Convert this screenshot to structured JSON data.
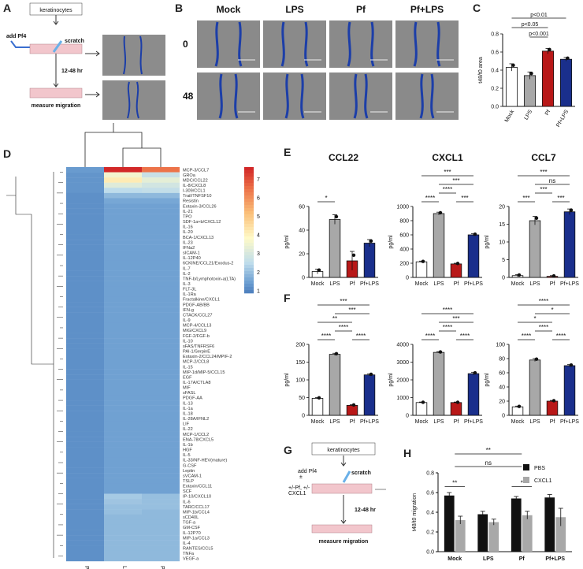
{
  "panels": {
    "A": {
      "letter": "A",
      "keratinocytes": "keratinocytes",
      "add": "add Pf4",
      "scratch": "scratch",
      "time": "12-48 hr",
      "measure": "measure migration"
    },
    "B": {
      "letter": "B",
      "columns": [
        "Mock",
        "LPS",
        "Pf",
        "Pf+LPS"
      ],
      "rows": [
        "0",
        "48"
      ]
    },
    "C": {
      "letter": "C"
    },
    "D": {
      "letter": "D"
    },
    "E": {
      "letter": "E"
    },
    "F": {
      "letter": "F"
    },
    "G": {
      "letter": "G",
      "keratinocytes": "keratinocytes",
      "add": "add Pf4",
      "add_sub": "±",
      "treat": "+/-Pf, +/-",
      "treat2": "CXCL1",
      "scratch": "scratch",
      "time": "12-48 hr",
      "measure": "measure migration"
    },
    "H": {
      "letter": "H"
    }
  },
  "chart_data": [
    {
      "id": "C",
      "type": "bar",
      "categories": [
        "Mock",
        "LPS",
        "Pf",
        "Pf+LPS"
      ],
      "values": [
        0.43,
        0.34,
        0.61,
        0.52
      ],
      "errors": [
        0.04,
        0.04,
        0.03,
        0.02
      ],
      "colors": [
        "#ffffff",
        "#a8a8a8",
        "#b81818",
        "#1a2f8c"
      ],
      "ylabel": "t48/t0 area",
      "ylim": [
        0,
        0.8
      ],
      "yticks": [
        "0.0",
        "0.2",
        "0.4",
        "0.6",
        "0.8"
      ],
      "significance": [
        "p<0.01",
        "p<0.05",
        "p<0.001"
      ]
    },
    {
      "id": "D",
      "type": "heatmap",
      "columns": [
        "Pf",
        "LPS",
        "Pf/LPS"
      ],
      "rows": [
        "MCP-3/CCL7",
        "GROa",
        "MDC/CCL22",
        "IL-8/CXCL8",
        "I-309/CCL1",
        "Trail/TNFSF10",
        "Resistin",
        "Eotaxin-3/CCL26",
        "IL-21",
        "TPO",
        "SDF-1a+b/CXCL12",
        "IL-16",
        "IL-20",
        "BCA-1/CXCL13",
        "IL-23",
        "IFNa2",
        "sICAM-1",
        "IL-12P40",
        "6CKINE/CCL21/Exodus-2",
        "IL-7",
        "IL-2",
        "TNF-b/Lymphotoxin-a(LTA)",
        "IL-3",
        "FLT-3L",
        "IL-1Ra",
        "Fractalkine/CXCL1",
        "PDGF-AB/BB",
        "IFN-g",
        "CTACK/CCL27",
        "IL-9",
        "MCP-4/CCL13",
        "MIG/CXCL9",
        "FGF-2/FGF-b",
        "IL-10",
        "sFAS/TNFRSF6",
        "PAI-1/SerpinE",
        "Eotaxin-2/CCL24/MPIF-2",
        "MCP-2/CCL8",
        "IL-15",
        "MIP-1d/MIP-5/CCL15",
        "EGF",
        "IL-17A/CTLA8",
        "MIF",
        "sFASL",
        "PDGF-AA",
        "IL-13",
        "IL-1a",
        "IL-18",
        "IL-28A/IFNL2",
        "LIF",
        "IL-22",
        "MCP-1/CCL2",
        "ENA-78/CXCL5",
        "IL-1b",
        "HGF",
        "IL-5",
        "IL-33/NF-HEV(mature)",
        "G-CSF",
        "Leptin",
        "sVCAM-1",
        "TSLP",
        "Eotaxin/CCL11",
        "SCF",
        "IP-10/CXCL10",
        "IL-6",
        "TARC/CCL17",
        "MIP-1b/CCL4",
        "sCD40L",
        "TGF-a",
        "GM-CSF",
        "IL-12P70",
        "MIP-1a/CCL3",
        "IL-4",
        "RANTES/CCL5",
        "TNFa",
        "VEGF-a"
      ],
      "values": [
        [
          1.4,
          7.6,
          6.5
        ],
        [
          1.3,
          3.6,
          2.7
        ],
        [
          1.3,
          4.2,
          3.3
        ],
        [
          1.3,
          3.2,
          2.9
        ],
        [
          1.3,
          2.5,
          2.6
        ],
        [
          1.2,
          1.9,
          1.9
        ],
        [
          1.2,
          1.6,
          1.6
        ],
        [
          1.2,
          1.5,
          1.5
        ],
        [
          1.2,
          1.5,
          1.5
        ],
        [
          1.2,
          1.5,
          1.5
        ],
        [
          1.2,
          1.5,
          1.5
        ],
        [
          1.2,
          1.5,
          1.5
        ],
        [
          1.2,
          1.5,
          1.5
        ],
        [
          1.2,
          1.5,
          1.5
        ],
        [
          1.2,
          1.5,
          1.5
        ],
        [
          1.2,
          1.5,
          1.5
        ],
        [
          1.2,
          1.5,
          1.5
        ],
        [
          1.2,
          1.5,
          1.5
        ],
        [
          1.2,
          1.5,
          1.5
        ],
        [
          1.2,
          1.5,
          1.5
        ],
        [
          1.2,
          1.5,
          1.5
        ],
        [
          1.2,
          1.5,
          1.5
        ],
        [
          1.2,
          1.5,
          1.5
        ],
        [
          1.2,
          1.5,
          1.5
        ],
        [
          1.2,
          1.5,
          1.5
        ],
        [
          1.2,
          1.5,
          1.5
        ],
        [
          1.2,
          1.5,
          1.5
        ],
        [
          1.2,
          1.5,
          1.5
        ],
        [
          1.2,
          1.5,
          1.5
        ],
        [
          1.2,
          1.5,
          1.5
        ],
        [
          1.2,
          1.5,
          1.5
        ],
        [
          1.2,
          1.5,
          1.5
        ],
        [
          1.2,
          1.5,
          1.5
        ],
        [
          1.2,
          1.5,
          1.5
        ],
        [
          1.2,
          1.5,
          1.5
        ],
        [
          1.2,
          1.5,
          1.5
        ],
        [
          1.2,
          1.5,
          1.5
        ],
        [
          1.2,
          1.5,
          1.5
        ],
        [
          1.2,
          1.5,
          1.5
        ],
        [
          1.2,
          1.5,
          1.5
        ],
        [
          1.2,
          1.5,
          1.5
        ],
        [
          1.2,
          1.5,
          1.5
        ],
        [
          1.2,
          1.5,
          1.5
        ],
        [
          1.2,
          1.5,
          1.5
        ],
        [
          1.2,
          1.5,
          1.5
        ],
        [
          1.2,
          1.5,
          1.5
        ],
        [
          1.2,
          1.5,
          1.5
        ],
        [
          1.2,
          1.5,
          1.5
        ],
        [
          1.2,
          1.5,
          1.5
        ],
        [
          1.2,
          1.5,
          1.5
        ],
        [
          1.2,
          1.5,
          1.5
        ],
        [
          1.2,
          1.5,
          1.5
        ],
        [
          1.2,
          1.5,
          1.5
        ],
        [
          1.2,
          1.5,
          1.5
        ],
        [
          1.2,
          1.5,
          1.5
        ],
        [
          1.2,
          1.5,
          1.5
        ],
        [
          1.2,
          1.5,
          1.5
        ],
        [
          1.2,
          1.5,
          1.5
        ],
        [
          1.2,
          1.5,
          1.5
        ],
        [
          1.2,
          1.5,
          1.5
        ],
        [
          1.2,
          1.5,
          1.5
        ],
        [
          1.2,
          1.5,
          1.5
        ],
        [
          1.2,
          1.5,
          1.5
        ],
        [
          1.2,
          2.2,
          2.0
        ],
        [
          1.2,
          2.1,
          2.0
        ],
        [
          1.2,
          2.0,
          2.0
        ],
        [
          1.2,
          2.0,
          1.9
        ],
        [
          1.2,
          1.9,
          1.9
        ],
        [
          1.2,
          1.9,
          1.9
        ],
        [
          1.2,
          1.9,
          1.9
        ],
        [
          1.2,
          1.9,
          1.9
        ],
        [
          1.2,
          1.9,
          1.9
        ],
        [
          1.2,
          1.9,
          1.9
        ],
        [
          1.2,
          1.9,
          1.9
        ],
        [
          1.2,
          1.9,
          1.9
        ],
        [
          1.2,
          1.9,
          1.9
        ]
      ],
      "scale_ticks": [
        "7",
        "6",
        "5",
        "4",
        "3",
        "2",
        "1"
      ],
      "scale_range": [
        0.8,
        7.6
      ]
    },
    {
      "id": "E1",
      "type": "bar",
      "title": "CCL22",
      "ylabel": "pg/ml",
      "categories": [
        "Mock",
        "LPS",
        "Pf",
        "Pf+LPS"
      ],
      "values": [
        5,
        49,
        14,
        29
      ],
      "errors": [
        2,
        4,
        8,
        3
      ],
      "ylim": [
        0,
        60
      ],
      "yticks": [
        "0",
        "20",
        "40",
        "60"
      ],
      "colors": [
        "#ffffff",
        "#a8a8a8",
        "#b81818",
        "#1a2f8c"
      ],
      "sig": [
        {
          "a": 0,
          "b": 1,
          "label": "*",
          "lvl": 0
        }
      ]
    },
    {
      "id": "E2",
      "type": "bar",
      "title": "CXCL1",
      "ylabel": "pg/ml",
      "categories": [
        "Mock",
        "LPS",
        "Pf",
        "Pf+LPS"
      ],
      "values": [
        220,
        900,
        190,
        600
      ],
      "errors": [
        10,
        20,
        10,
        15
      ],
      "ylim": [
        0,
        1000
      ],
      "yticks": [
        "0",
        "200",
        "400",
        "600",
        "800",
        "1000"
      ],
      "colors": [
        "#ffffff",
        "#a8a8a8",
        "#b81818",
        "#1a2f8c"
      ],
      "sig": [
        {
          "a": 0,
          "b": 1,
          "label": "****",
          "lvl": 0
        },
        {
          "a": 2,
          "b": 3,
          "label": "***",
          "lvl": 0
        },
        {
          "a": 1,
          "b": 2,
          "label": "****",
          "lvl": 1
        },
        {
          "a": 1,
          "b": 3,
          "label": "***",
          "lvl": 2
        },
        {
          "a": 0,
          "b": 3,
          "label": "***",
          "lvl": 3
        }
      ]
    },
    {
      "id": "E3",
      "type": "bar",
      "title": "CCL7",
      "ylabel": "pg/ml",
      "categories": [
        "Mock",
        "LPS",
        "Pf",
        "Pf+LPS"
      ],
      "values": [
        0.5,
        16,
        0.3,
        18.5
      ],
      "errors": [
        0.3,
        1.2,
        0.2,
        0.8
      ],
      "ylim": [
        0,
        20
      ],
      "yticks": [
        "0",
        "5",
        "10",
        "15",
        "20"
      ],
      "colors": [
        "#ffffff",
        "#a8a8a8",
        "#b81818",
        "#1a2f8c"
      ],
      "sig": [
        {
          "a": 0,
          "b": 1,
          "label": "***",
          "lvl": 0
        },
        {
          "a": 2,
          "b": 3,
          "label": "***",
          "lvl": 0
        },
        {
          "a": 1,
          "b": 2,
          "label": "***",
          "lvl": 1
        },
        {
          "a": 1,
          "b": 3,
          "label": "ns",
          "lvl": 2
        },
        {
          "a": 0,
          "b": 3,
          "label": "***",
          "lvl": 3
        }
      ]
    },
    {
      "id": "F1",
      "type": "bar",
      "ylabel": "pg/ml",
      "categories": [
        "Mock",
        "LPS",
        "Pf",
        "Pf+LPS"
      ],
      "values": [
        48,
        172,
        28,
        114
      ],
      "errors": [
        2,
        3,
        2,
        3
      ],
      "ylim": [
        0,
        200
      ],
      "yticks": [
        "0",
        "50",
        "100",
        "150",
        "200"
      ],
      "colors": [
        "#ffffff",
        "#a8a8a8",
        "#b81818",
        "#1a2f8c"
      ],
      "sig": [
        {
          "a": 0,
          "b": 1,
          "label": "****",
          "lvl": 0
        },
        {
          "a": 2,
          "b": 3,
          "label": "****",
          "lvl": 0
        },
        {
          "a": 1,
          "b": 2,
          "label": "****",
          "lvl": 1
        },
        {
          "a": 0,
          "b": 2,
          "label": "**",
          "lvl": 2
        },
        {
          "a": 1,
          "b": 3,
          "label": "***",
          "lvl": 3
        },
        {
          "a": 0,
          "b": 3,
          "label": "***",
          "lvl": 4
        }
      ]
    },
    {
      "id": "F2",
      "type": "bar",
      "ylabel": "pg/ml",
      "categories": [
        "Mock",
        "LPS",
        "Pf",
        "Pf+LPS"
      ],
      "values": [
        720,
        3550,
        720,
        2350
      ],
      "errors": [
        30,
        40,
        30,
        80
      ],
      "ylim": [
        0,
        4000
      ],
      "yticks": [
        "0",
        "1000",
        "2000",
        "3000",
        "4000"
      ],
      "colors": [
        "#ffffff",
        "#a8a8a8",
        "#b81818",
        "#1a2f8c"
      ],
      "sig": [
        {
          "a": 0,
          "b": 1,
          "label": "****",
          "lvl": 0
        },
        {
          "a": 2,
          "b": 3,
          "label": "****",
          "lvl": 0
        },
        {
          "a": 1,
          "b": 2,
          "label": "****",
          "lvl": 1
        },
        {
          "a": 1,
          "b": 3,
          "label": "***",
          "lvl": 2
        },
        {
          "a": 0,
          "b": 3,
          "label": "****",
          "lvl": 3
        }
      ]
    },
    {
      "id": "F3",
      "type": "bar",
      "ylabel": "pg/ml",
      "categories": [
        "Mock",
        "LPS",
        "Pf",
        "Pf+LPS"
      ],
      "values": [
        12,
        78,
        20,
        70
      ],
      "errors": [
        1,
        2,
        1,
        1.5
      ],
      "ylim": [
        0,
        100
      ],
      "yticks": [
        "0",
        "20",
        "40",
        "60",
        "80",
        "100"
      ],
      "colors": [
        "#ffffff",
        "#a8a8a8",
        "#b81818",
        "#1a2f8c"
      ],
      "sig": [
        {
          "a": 0,
          "b": 1,
          "label": "****",
          "lvl": 0
        },
        {
          "a": 2,
          "b": 3,
          "label": "****",
          "lvl": 0
        },
        {
          "a": 1,
          "b": 2,
          "label": "****",
          "lvl": 1
        },
        {
          "a": 0,
          "b": 2,
          "label": "*",
          "lvl": 2
        },
        {
          "a": 1,
          "b": 3,
          "label": "*",
          "lvl": 3
        },
        {
          "a": 0,
          "b": 3,
          "label": "****",
          "lvl": 4
        }
      ]
    },
    {
      "id": "H",
      "type": "bar",
      "ylabel": "t48/t0 migration",
      "categories": [
        "Mock",
        "LPS",
        "Pf",
        "Pf+LPS"
      ],
      "series": [
        {
          "name": "PBS",
          "values": [
            0.57,
            0.38,
            0.54,
            0.55
          ],
          "errors": [
            0.03,
            0.03,
            0.02,
            0.03
          ],
          "color": "#111111"
        },
        {
          "name": "CXCL1",
          "values": [
            0.32,
            0.3,
            0.37,
            0.35
          ],
          "errors": [
            0.04,
            0.03,
            0.04,
            0.09
          ],
          "color": "#a8a8a8"
        }
      ],
      "ylim": [
        0,
        0.8
      ],
      "yticks": [
        "0.0",
        "0.2",
        "0.4",
        "0.6",
        "0.8"
      ],
      "sig_pair": [
        {
          "group": 0,
          "label": "**"
        },
        {
          "group": 2,
          "label": "*"
        }
      ],
      "sig_top": [
        {
          "a": 0,
          "b": 2,
          "label": "**",
          "lvl": 1
        },
        {
          "a": 0,
          "b": 2,
          "label": "ns",
          "lvl": 0
        }
      ]
    }
  ]
}
